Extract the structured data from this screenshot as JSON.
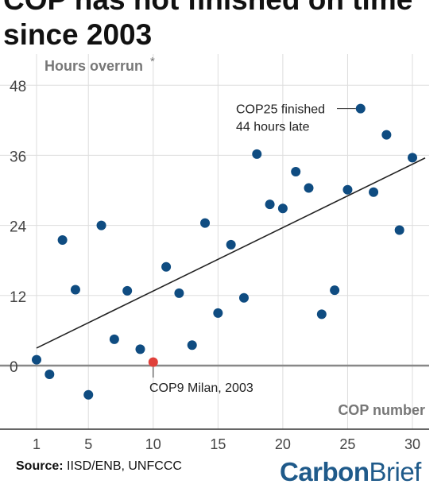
{
  "title_lines": [
    "COP has not finished on time",
    "since 2003"
  ],
  "source_label": "Source:",
  "source_text": " IISD/ENB, UNFCCC",
  "logo": {
    "part1": "Carbon",
    "part2": "Brief"
  },
  "colors": {
    "dot": "#0f4c81",
    "highlight": "#e0403a",
    "trend": "#222222",
    "axis": "#888888",
    "grid": "#dddddd"
  },
  "chart_data": {
    "type": "scatter",
    "ylabel": "Hours overrun",
    "ylabel_marker": "*",
    "xlabel": "COP number",
    "xlim": [
      1,
      30
    ],
    "ylim": [
      -10,
      53
    ],
    "xticks": [
      1,
      5,
      10,
      15,
      20,
      25,
      30
    ],
    "yticks": [
      0,
      12,
      24,
      36,
      48
    ],
    "grid": "horizontal",
    "points": [
      {
        "x": 1,
        "y": 1
      },
      {
        "x": 2,
        "y": -1.5
      },
      {
        "x": 3,
        "y": 21.5
      },
      {
        "x": 4,
        "y": 13
      },
      {
        "x": 5,
        "y": -5
      },
      {
        "x": 6,
        "y": 24
      },
      {
        "x": 7,
        "y": 4.5
      },
      {
        "x": 8,
        "y": 12.8
      },
      {
        "x": 9,
        "y": 2.8
      },
      {
        "x": 10,
        "y": 0.6,
        "highlight": true
      },
      {
        "x": 11,
        "y": 16.9
      },
      {
        "x": 12,
        "y": 12.4
      },
      {
        "x": 13,
        "y": 3.5
      },
      {
        "x": 14,
        "y": 24.4
      },
      {
        "x": 15,
        "y": 9
      },
      {
        "x": 16,
        "y": 20.7
      },
      {
        "x": 17,
        "y": 11.6
      },
      {
        "x": 18,
        "y": 36.2
      },
      {
        "x": 19,
        "y": 27.6
      },
      {
        "x": 20,
        "y": 26.9
      },
      {
        "x": 21,
        "y": 33.2
      },
      {
        "x": 22,
        "y": 30.4
      },
      {
        "x": 23,
        "y": 8.8
      },
      {
        "x": 24,
        "y": 12.9
      },
      {
        "x": 25,
        "y": 30.1
      },
      {
        "x": 26,
        "y": 44
      },
      {
        "x": 27,
        "y": 29.7
      },
      {
        "x": 28,
        "y": 39.5
      },
      {
        "x": 29,
        "y": 23.2
      },
      {
        "x": 30,
        "y": 35.6
      }
    ],
    "trendline": {
      "start": [
        1,
        3
      ],
      "end": [
        30,
        35
      ]
    },
    "annotations": [
      {
        "lines": [
          "COP25 finished",
          "44 hours late"
        ],
        "target_x": 26
      },
      {
        "lines": [
          "COP9 Milan, 2003"
        ],
        "target_x": 10
      }
    ]
  }
}
